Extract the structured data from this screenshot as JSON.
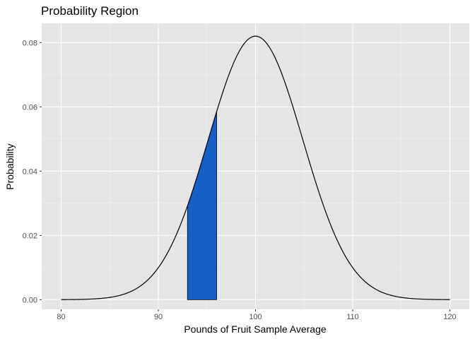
{
  "chart_data": {
    "type": "area",
    "title": "Probability Region",
    "xlabel": "Pounds of Fruit Sample Average",
    "ylabel": "Probability",
    "xlim": [
      78,
      122
    ],
    "ylim": [
      -0.003,
      0.086
    ],
    "x_ticks": [
      80,
      90,
      100,
      110,
      120
    ],
    "x_tick_labels": [
      "80",
      "90",
      "100",
      "110",
      "120"
    ],
    "y_ticks": [
      0,
      0.02,
      0.04,
      0.06,
      0.08
    ],
    "y_tick_labels": [
      "0.00",
      "0.02",
      "0.04",
      "0.06",
      "0.08"
    ],
    "grid": true,
    "curve": {
      "distribution": "normal",
      "mean": 100,
      "sd": 4.87,
      "x_range": [
        80,
        120
      ],
      "peak": 0.082
    },
    "shaded_region": {
      "x_start": 93,
      "x_end": 96,
      "color": "#1560C8"
    },
    "colors": {
      "panel_background": "#E5E5E5",
      "grid_major": "#FFFFFF",
      "curve": "#000000"
    }
  }
}
